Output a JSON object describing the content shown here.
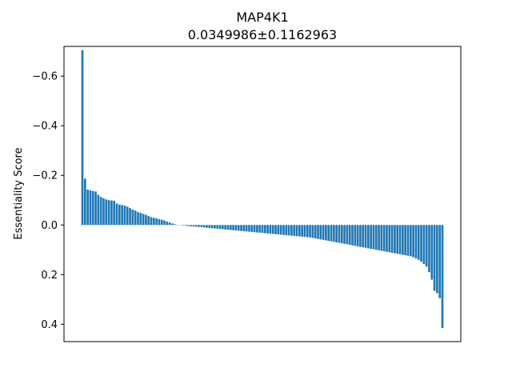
{
  "chart_data": {
    "type": "bar",
    "title": "MAP4K1",
    "subtitle": "0.0349986±0.1162963",
    "xlabel": "",
    "ylabel": "Essentiality Score",
    "y_inverted": true,
    "ylim": [
      0.47,
      -0.72
    ],
    "yticks": [
      -0.6,
      -0.4,
      -0.2,
      0.0,
      0.2,
      0.4
    ],
    "ytick_labels": [
      "−0.6",
      "−0.4",
      "−0.2",
      "0.0",
      "0.2",
      "0.4"
    ],
    "grid": false,
    "legend": "none",
    "bar_color": "#1f77b4",
    "values": [
      -0.705,
      -0.187,
      -0.143,
      -0.14,
      -0.137,
      -0.135,
      -0.122,
      -0.113,
      -0.108,
      -0.103,
      -0.1,
      -0.099,
      -0.098,
      -0.087,
      -0.082,
      -0.08,
      -0.078,
      -0.074,
      -0.068,
      -0.062,
      -0.058,
      -0.052,
      -0.049,
      -0.045,
      -0.041,
      -0.036,
      -0.032,
      -0.029,
      -0.027,
      -0.024,
      -0.021,
      -0.018,
      -0.014,
      -0.01,
      -0.006,
      -0.003,
      -0.001,
      0.001,
      0.002,
      0.003,
      0.004,
      0.005,
      0.006,
      0.007,
      0.008,
      0.009,
      0.01,
      0.011,
      0.012,
      0.013,
      0.014,
      0.015,
      0.016,
      0.017,
      0.018,
      0.019,
      0.02,
      0.021,
      0.022,
      0.023,
      0.024,
      0.025,
      0.026,
      0.027,
      0.028,
      0.029,
      0.03,
      0.031,
      0.032,
      0.033,
      0.034,
      0.035,
      0.036,
      0.037,
      0.038,
      0.039,
      0.04,
      0.041,
      0.042,
      0.043,
      0.044,
      0.045,
      0.046,
      0.047,
      0.048,
      0.049,
      0.05,
      0.052,
      0.054,
      0.056,
      0.058,
      0.06,
      0.062,
      0.064,
      0.066,
      0.068,
      0.07,
      0.072,
      0.074,
      0.076,
      0.078,
      0.08,
      0.082,
      0.084,
      0.086,
      0.088,
      0.09,
      0.092,
      0.094,
      0.096,
      0.098,
      0.1,
      0.102,
      0.104,
      0.106,
      0.108,
      0.11,
      0.112,
      0.114,
      0.116,
      0.118,
      0.12,
      0.122,
      0.124,
      0.126,
      0.13,
      0.135,
      0.14,
      0.148,
      0.157,
      0.168,
      0.19,
      0.22,
      0.265,
      0.275,
      0.295,
      0.415
    ]
  }
}
